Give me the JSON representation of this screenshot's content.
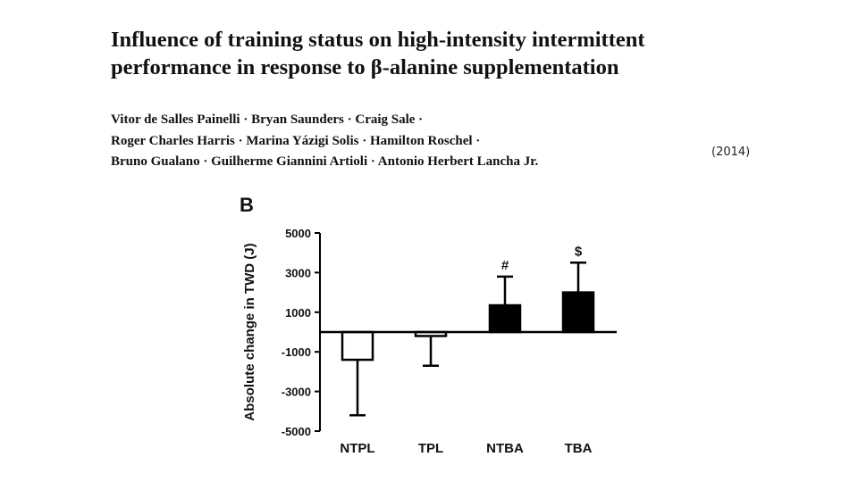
{
  "title_lines": [
    "Influence of training status on high-intensity intermittent",
    "performance in response to β-alanine supplementation"
  ],
  "author_lines": [
    "Vitor de Salles Painelli · Bryan Saunders · Craig Sale ·",
    "Roger Charles Harris · Marina Yázigi Solis · Hamilton Roschel ·",
    "Bruno Gualano · Guilherme Giannini Artioli · Antonio Herbert Lancha Jr."
  ],
  "year": "(2014)",
  "chart_data": {
    "type": "bar",
    "panel_label": "B",
    "title": "",
    "xlabel": "",
    "ylabel": "Absolute change in TWD (J)",
    "ylim": [
      -5000,
      5000
    ],
    "yticks": [
      5000,
      3000,
      1000,
      -1000,
      -3000,
      -5000
    ],
    "yticklabels": [
      "5000",
      "3000",
      "1000",
      "-1000",
      "-3000",
      "-5000"
    ],
    "categories": [
      "NTPL",
      "TPL",
      "NTBA",
      "TBA"
    ],
    "values": [
      -1400,
      -200,
      1350,
      2000
    ],
    "errors": [
      2800,
      1500,
      1450,
      1500
    ],
    "fills": [
      "#ffffff",
      "#ffffff",
      "#000000",
      "#000000"
    ],
    "annotations": [
      "",
      "",
      "#",
      "$"
    ],
    "grid": false
  }
}
